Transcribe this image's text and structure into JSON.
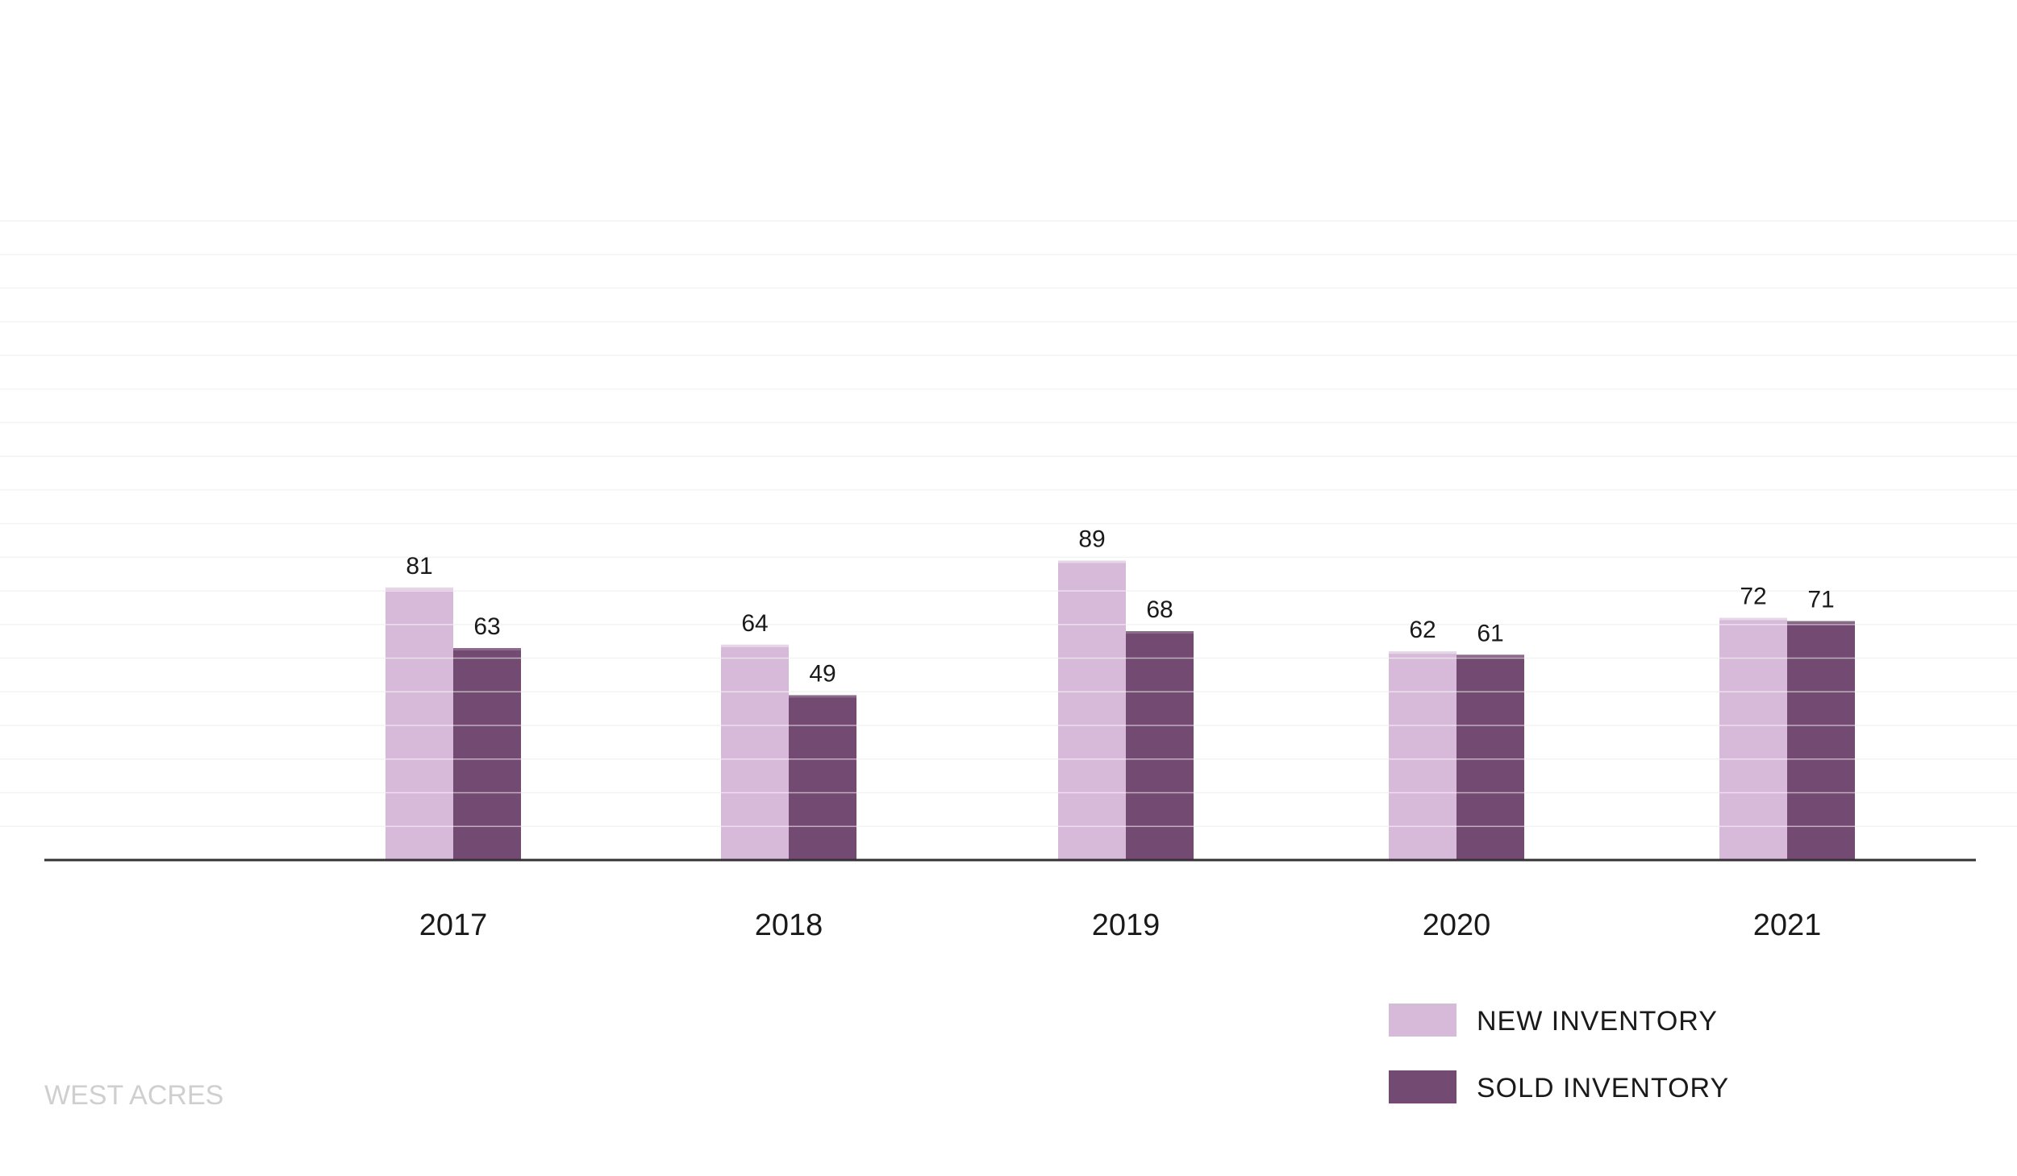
{
  "chart_data": {
    "type": "bar",
    "categories": [
      "2017",
      "2018",
      "2019",
      "2020",
      "2021"
    ],
    "series": [
      {
        "name": "NEW INVENTORY",
        "values": [
          81,
          64,
          89,
          62,
          72
        ],
        "color": "#d7b9d9"
      },
      {
        "name": "SOLD INVENTORY",
        "values": [
          63,
          49,
          68,
          61,
          71
        ],
        "color": "#734a72"
      }
    ],
    "ylim": [
      0,
      200
    ],
    "grid": true,
    "gridline_step": 10,
    "data_labels": true,
    "legend_position": "bottom-right",
    "title": "",
    "xlabel": "",
    "ylabel": ""
  },
  "source_label": "WEST ACRES",
  "colors": {
    "grid": "#f3f3f3",
    "axis": "#333333",
    "bar_grid_overlay": "#ffffff",
    "source_text": "#cfcfcf"
  }
}
